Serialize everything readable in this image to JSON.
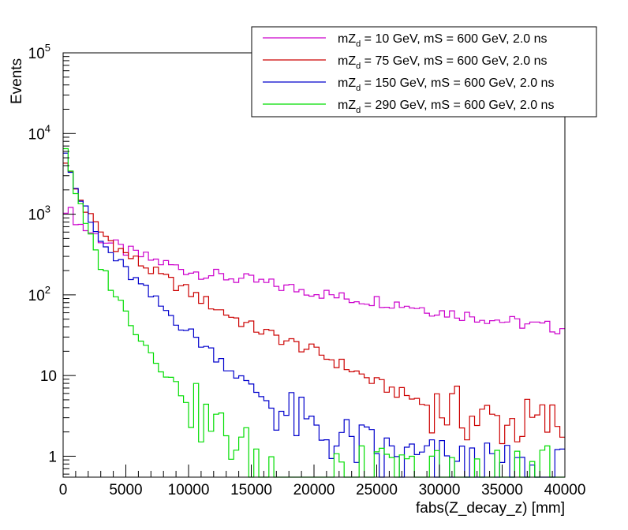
{
  "chart_data": {
    "type": "line",
    "xlabel": "fabs(Z_decay_z) [mm]",
    "ylabel": "Events",
    "xlim": [
      0,
      40000
    ],
    "ylim": [
      0.55,
      100000
    ],
    "y_scale": "log",
    "x_ticks": [
      "0",
      "5000",
      "10000",
      "15000",
      "20000",
      "25000",
      "30000",
      "35000",
      "40000"
    ],
    "y_ticks": [
      {
        "value": 1,
        "label": "1",
        "exp": ""
      },
      {
        "value": 10,
        "label": "10",
        "exp": ""
      },
      {
        "value": 100,
        "label": "10",
        "exp": "2"
      },
      {
        "value": 1000,
        "label": "10",
        "exp": "3"
      },
      {
        "value": 10000,
        "label": "10",
        "exp": "4"
      },
      {
        "value": 100000,
        "label": "10",
        "exp": "5"
      }
    ],
    "legend_position": "top-right",
    "bin_width": 400,
    "series": [
      {
        "name": "mZd = 10 GeV, mS = 600 GeV, 2.0 ns",
        "legend_parts": [
          "mZ",
          "d",
          " = 10 GeV, mS = 600 GeV, 2.0 ns"
        ],
        "color": "#cc00cc",
        "anchors": [
          [
            0,
            1350
          ],
          [
            1500,
            700
          ],
          [
            3000,
            500
          ],
          [
            5000,
            350
          ],
          [
            7500,
            260
          ],
          [
            10000,
            200
          ],
          [
            12500,
            170
          ],
          [
            15000,
            150
          ],
          [
            17500,
            125
          ],
          [
            20000,
            110
          ],
          [
            22500,
            90
          ],
          [
            25000,
            85
          ],
          [
            27500,
            75
          ],
          [
            30000,
            62
          ],
          [
            32500,
            55
          ],
          [
            35000,
            48
          ],
          [
            37500,
            42
          ],
          [
            40000,
            38
          ]
        ]
      },
      {
        "name": "mZd = 75 GeV, mS = 600 GeV, 2.0 ns",
        "legend_parts": [
          "mZ",
          "d",
          " = 75 GeV, mS = 600 GeV, 2.0 ns"
        ],
        "color": "#cc0000",
        "anchors": [
          [
            0,
            6000
          ],
          [
            1000,
            2000
          ],
          [
            2000,
            1000
          ],
          [
            3000,
            600
          ],
          [
            5000,
            320
          ],
          [
            7500,
            180
          ],
          [
            10000,
            110
          ],
          [
            12500,
            65
          ],
          [
            15000,
            40
          ],
          [
            17500,
            28
          ],
          [
            20000,
            20
          ],
          [
            22500,
            13
          ],
          [
            25000,
            8
          ],
          [
            27500,
            5.5
          ],
          [
            30000,
            4
          ],
          [
            32500,
            3
          ],
          [
            35000,
            2.6
          ],
          [
            37500,
            2.5
          ],
          [
            40000,
            2.5
          ]
        ]
      },
      {
        "name": "mZd = 150 GeV, mS = 600 GeV, 2.0 ns",
        "legend_parts": [
          "mZ",
          "d",
          " = 150 GeV, mS = 600 GeV, 2.0 ns"
        ],
        "color": "#0000cc",
        "anchors": [
          [
            0,
            9000
          ],
          [
            1000,
            2200
          ],
          [
            2000,
            900
          ],
          [
            3000,
            450
          ],
          [
            5000,
            200
          ],
          [
            7500,
            80
          ],
          [
            10000,
            35
          ],
          [
            12500,
            16
          ],
          [
            15000,
            7
          ],
          [
            17500,
            3.5
          ],
          [
            20000,
            2
          ],
          [
            22500,
            1.5
          ],
          [
            25000,
            1.1
          ],
          [
            27500,
            0.9
          ],
          [
            30000,
            0.8
          ],
          [
            32500,
            0.7
          ],
          [
            35000,
            0.65
          ],
          [
            37500,
            0.6
          ],
          [
            40000,
            0.6
          ]
        ]
      },
      {
        "name": "mZd = 290 GeV, mS = 600 GeV, 2.0 ns",
        "legend_parts": [
          "mZ",
          "d",
          " = 290 GeV, mS = 600 GeV, 2.0 ns"
        ],
        "color": "#00dd00",
        "anchors": [
          [
            0,
            10000
          ],
          [
            800,
            2500
          ],
          [
            1600,
            900
          ],
          [
            2400,
            400
          ],
          [
            3200,
            200
          ],
          [
            5000,
            60
          ],
          [
            6500,
            25
          ],
          [
            8000,
            12
          ],
          [
            9500,
            6
          ],
          [
            11000,
            3
          ],
          [
            13000,
            1.8
          ],
          [
            15000,
            1
          ],
          [
            17000,
            0.7
          ],
          [
            19000,
            0.6
          ],
          [
            40000,
            0.6
          ]
        ]
      }
    ]
  }
}
